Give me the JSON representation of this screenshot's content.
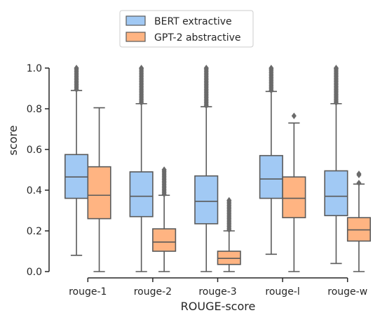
{
  "chart_data": {
    "type": "box",
    "xlabel": "ROUGE-score",
    "ylabel": "score",
    "ylim": [
      0,
      1
    ],
    "yticks": [
      0.0,
      0.2,
      0.4,
      0.6,
      0.8,
      1.0
    ],
    "ytick_labels": [
      "0.0",
      "0.2",
      "0.4",
      "0.6",
      "0.8",
      "1.0"
    ],
    "categories": [
      "rouge-1",
      "rouge-2",
      "rouge-3",
      "rouge-l",
      "rouge-w"
    ],
    "legend": {
      "placement": "top-center"
    },
    "series": [
      {
        "name": "BERT extractive",
        "color": "#a1c9f4",
        "boxes": [
          {
            "whisker_low": 0.08,
            "q1": 0.36,
            "median": 0.465,
            "q3": 0.575,
            "whisker_high": 0.89,
            "outliers_from": 0.895,
            "outliers_to": 1.0
          },
          {
            "whisker_low": 0.0,
            "q1": 0.27,
            "median": 0.37,
            "q3": 0.49,
            "whisker_high": 0.825,
            "outliers_from": 0.83,
            "outliers_to": 1.0
          },
          {
            "whisker_low": 0.0,
            "q1": 0.235,
            "median": 0.345,
            "q3": 0.47,
            "whisker_high": 0.81,
            "outliers_from": 0.815,
            "outliers_to": 1.0
          },
          {
            "whisker_low": 0.085,
            "q1": 0.36,
            "median": 0.455,
            "q3": 0.57,
            "whisker_high": 0.885,
            "outliers_from": 0.89,
            "outliers_to": 1.0
          },
          {
            "whisker_low": 0.04,
            "q1": 0.275,
            "median": 0.37,
            "q3": 0.495,
            "whisker_high": 0.825,
            "outliers_from": 0.83,
            "outliers_to": 1.0
          }
        ]
      },
      {
        "name": "GPT-2 abstractive",
        "color": "#ffb482",
        "boxes": [
          {
            "whisker_low": 0.0,
            "q1": 0.26,
            "median": 0.375,
            "q3": 0.515,
            "whisker_high": 0.805,
            "outliers": []
          },
          {
            "whisker_low": 0.0,
            "q1": 0.1,
            "median": 0.145,
            "q3": 0.21,
            "whisker_high": 0.375,
            "outliers_from": 0.38,
            "outliers_to": 0.5
          },
          {
            "whisker_low": 0.0,
            "q1": 0.035,
            "median": 0.065,
            "q3": 0.1,
            "whisker_high": 0.2,
            "outliers_from": 0.205,
            "outliers_to": 0.35
          },
          {
            "whisker_low": 0.0,
            "q1": 0.265,
            "median": 0.36,
            "q3": 0.465,
            "whisker_high": 0.73,
            "outliers": [
              0.765
            ]
          },
          {
            "whisker_low": 0.0,
            "q1": 0.15,
            "median": 0.205,
            "q3": 0.265,
            "whisker_high": 0.43,
            "outliers": [
              0.435,
              0.475,
              0.48
            ]
          }
        ]
      }
    ]
  }
}
